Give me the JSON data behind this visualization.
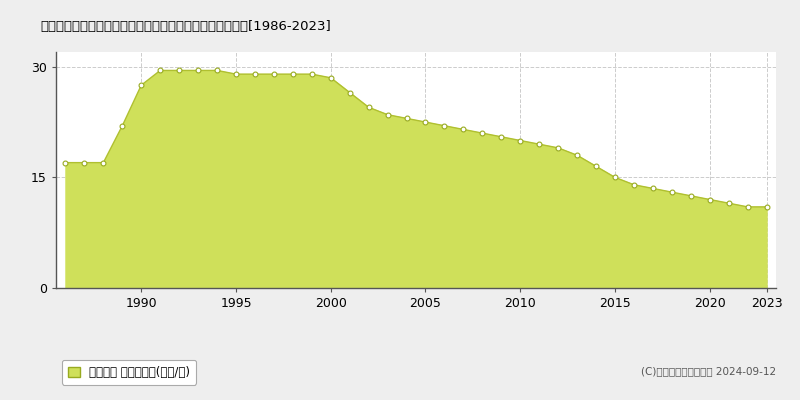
{
  "title": "静岡県焼津市石津港町１９番１４外　地価公示　地価推移[1986-2023]",
  "years": [
    1986,
    1987,
    1988,
    1989,
    1990,
    1991,
    1992,
    1993,
    1994,
    1995,
    1996,
    1997,
    1998,
    1999,
    2000,
    2001,
    2002,
    2003,
    2004,
    2005,
    2006,
    2007,
    2008,
    2009,
    2010,
    2011,
    2012,
    2013,
    2014,
    2015,
    2016,
    2017,
    2018,
    2019,
    2020,
    2021,
    2022,
    2023
  ],
  "values": [
    17.0,
    17.0,
    17.0,
    22.0,
    27.5,
    29.5,
    29.5,
    29.5,
    29.5,
    29.0,
    29.0,
    29.0,
    29.0,
    29.0,
    28.5,
    26.5,
    24.5,
    23.5,
    23.0,
    22.5,
    22.0,
    21.5,
    21.0,
    20.5,
    20.0,
    19.5,
    19.0,
    18.0,
    16.5,
    15.0,
    14.0,
    13.5,
    13.0,
    12.5,
    12.0,
    11.5,
    11.0,
    11.0
  ],
  "fill_color": "#cfe05a",
  "line_color": "#b0c030",
  "marker_facecolor": "#ffffff",
  "marker_edgecolor": "#98aa20",
  "bg_color": "#eeeeee",
  "plot_bg_color": "#ffffff",
  "grid_color": "#cccccc",
  "yticks": [
    0,
    15,
    30
  ],
  "ylim": [
    0,
    32
  ],
  "xlim": [
    1985.5,
    2023.5
  ],
  "xtick_years": [
    1990,
    1995,
    2000,
    2005,
    2010,
    2015,
    2020,
    2023
  ],
  "legend_label": "地価公示 平均嵪単価(万円/嵪)",
  "copyright_text": "(C)土地価格ドットコム 2024-09-12"
}
